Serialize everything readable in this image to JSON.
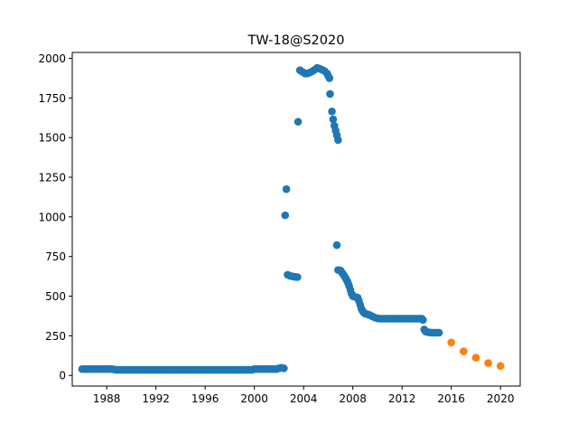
{
  "chart_data": {
    "type": "scatter",
    "title": "TW-18@S2020",
    "xlabel": "",
    "ylabel": "",
    "xlim": [
      1985.2,
      2021.6
    ],
    "ylim": [
      -67,
      2037
    ],
    "x_ticks": [
      1988,
      1992,
      1996,
      2000,
      2004,
      2008,
      2012,
      2016,
      2020
    ],
    "y_ticks": [
      0,
      250,
      500,
      750,
      1000,
      1250,
      1500,
      1750,
      2000
    ],
    "grid": false,
    "legend": "none",
    "series": [
      {
        "color": "#1f77b4",
        "points": [
          [
            1986.0,
            40
          ],
          [
            1986.2,
            40
          ],
          [
            1986.4,
            40
          ],
          [
            1986.6,
            40
          ],
          [
            1986.8,
            40
          ],
          [
            1987.0,
            40
          ],
          [
            1987.2,
            40
          ],
          [
            1987.4,
            40
          ],
          [
            1987.6,
            40
          ],
          [
            1987.8,
            40
          ],
          [
            1988.0,
            40
          ],
          [
            1988.2,
            40
          ],
          [
            1988.4,
            40
          ],
          [
            1988.6,
            38
          ],
          [
            1988.8,
            35
          ],
          [
            1989.0,
            35
          ],
          [
            1989.2,
            35
          ],
          [
            1989.4,
            35
          ],
          [
            1989.6,
            35
          ],
          [
            1989.8,
            35
          ],
          [
            1990.0,
            35
          ],
          [
            1990.2,
            35
          ],
          [
            1990.4,
            35
          ],
          [
            1990.6,
            35
          ],
          [
            1990.8,
            35
          ],
          [
            1991.0,
            35
          ],
          [
            1991.2,
            35
          ],
          [
            1991.4,
            35
          ],
          [
            1991.6,
            35
          ],
          [
            1991.8,
            35
          ],
          [
            1992.0,
            35
          ],
          [
            1992.2,
            35
          ],
          [
            1992.4,
            35
          ],
          [
            1992.6,
            35
          ],
          [
            1992.8,
            35
          ],
          [
            1993.0,
            35
          ],
          [
            1993.2,
            35
          ],
          [
            1993.4,
            35
          ],
          [
            1993.6,
            35
          ],
          [
            1993.8,
            35
          ],
          [
            1994.0,
            35
          ],
          [
            1994.2,
            35
          ],
          [
            1994.4,
            35
          ],
          [
            1994.6,
            35
          ],
          [
            1994.8,
            35
          ],
          [
            1995.0,
            35
          ],
          [
            1995.2,
            35
          ],
          [
            1995.4,
            35
          ],
          [
            1995.6,
            35
          ],
          [
            1995.8,
            35
          ],
          [
            1996.0,
            35
          ],
          [
            1996.2,
            35
          ],
          [
            1996.4,
            35
          ],
          [
            1996.6,
            35
          ],
          [
            1996.8,
            35
          ],
          [
            1997.0,
            35
          ],
          [
            1997.2,
            35
          ],
          [
            1997.4,
            35
          ],
          [
            1997.6,
            35
          ],
          [
            1997.8,
            35
          ],
          [
            1998.0,
            35
          ],
          [
            1998.2,
            35
          ],
          [
            1998.4,
            35
          ],
          [
            1998.6,
            35
          ],
          [
            1998.8,
            35
          ],
          [
            1999.0,
            35
          ],
          [
            1999.2,
            35
          ],
          [
            1999.4,
            35
          ],
          [
            1999.6,
            35
          ],
          [
            1999.8,
            35
          ],
          [
            2000.0,
            40
          ],
          [
            2000.2,
            40
          ],
          [
            2000.4,
            40
          ],
          [
            2000.6,
            40
          ],
          [
            2000.8,
            40
          ],
          [
            2001.0,
            40
          ],
          [
            2001.2,
            40
          ],
          [
            2001.4,
            40
          ],
          [
            2001.6,
            40
          ],
          [
            2001.8,
            40
          ],
          [
            2002.0,
            45
          ],
          [
            2002.2,
            48
          ],
          [
            2002.4,
            45
          ],
          [
            2002.5,
            1010
          ],
          [
            2002.6,
            1175
          ],
          [
            2002.7,
            635
          ],
          [
            2002.9,
            628
          ],
          [
            2003.1,
            625
          ],
          [
            2003.3,
            622
          ],
          [
            2003.5,
            620
          ],
          [
            2003.55,
            1600
          ],
          [
            2003.7,
            1925
          ],
          [
            2003.9,
            1915
          ],
          [
            2004.1,
            1905
          ],
          [
            2004.3,
            1905
          ],
          [
            2004.5,
            1910
          ],
          [
            2004.7,
            1918
          ],
          [
            2004.9,
            1928
          ],
          [
            2005.1,
            1940
          ],
          [
            2005.3,
            1935
          ],
          [
            2005.5,
            1928
          ],
          [
            2005.7,
            1920
          ],
          [
            2005.9,
            1905
          ],
          [
            2006.0,
            1890
          ],
          [
            2006.1,
            1875
          ],
          [
            2006.15,
            1775
          ],
          [
            2006.3,
            1665
          ],
          [
            2006.4,
            1615
          ],
          [
            2006.5,
            1575
          ],
          [
            2006.6,
            1545
          ],
          [
            2006.7,
            1515
          ],
          [
            2006.8,
            1485
          ],
          [
            2006.7,
            822
          ],
          [
            2006.8,
            665
          ],
          [
            2007.0,
            662
          ],
          [
            2007.1,
            650
          ],
          [
            2007.2,
            640
          ],
          [
            2007.3,
            628
          ],
          [
            2007.4,
            615
          ],
          [
            2007.5,
            600
          ],
          [
            2007.6,
            585
          ],
          [
            2007.7,
            565
          ],
          [
            2007.8,
            540
          ],
          [
            2007.9,
            515
          ],
          [
            2008.0,
            500
          ],
          [
            2008.2,
            495
          ],
          [
            2008.4,
            490
          ],
          [
            2008.5,
            470
          ],
          [
            2008.6,
            445
          ],
          [
            2008.7,
            420
          ],
          [
            2008.8,
            405
          ],
          [
            2008.9,
            395
          ],
          [
            2009.0,
            390
          ],
          [
            2009.2,
            385
          ],
          [
            2009.4,
            380
          ],
          [
            2009.6,
            372
          ],
          [
            2009.8,
            365
          ],
          [
            2010.0,
            360
          ],
          [
            2010.2,
            358
          ],
          [
            2010.4,
            358
          ],
          [
            2010.6,
            358
          ],
          [
            2010.8,
            358
          ],
          [
            2011.0,
            358
          ],
          [
            2011.2,
            358
          ],
          [
            2011.4,
            358
          ],
          [
            2011.6,
            358
          ],
          [
            2011.8,
            358
          ],
          [
            2012.0,
            358
          ],
          [
            2012.2,
            358
          ],
          [
            2012.4,
            358
          ],
          [
            2012.6,
            358
          ],
          [
            2012.8,
            358
          ],
          [
            2013.0,
            358
          ],
          [
            2013.2,
            358
          ],
          [
            2013.4,
            358
          ],
          [
            2013.6,
            358
          ],
          [
            2013.7,
            350
          ],
          [
            2013.8,
            290
          ],
          [
            2013.9,
            278
          ],
          [
            2014.0,
            275
          ],
          [
            2014.2,
            272
          ],
          [
            2014.4,
            270
          ],
          [
            2014.6,
            270
          ],
          [
            2014.8,
            270
          ],
          [
            2015.0,
            270
          ]
        ]
      },
      {
        "color": "#ff7f0e",
        "points": [
          [
            2016,
            208
          ],
          [
            2017,
            152
          ],
          [
            2018,
            112
          ],
          [
            2019,
            78
          ],
          [
            2020,
            60
          ]
        ]
      }
    ]
  }
}
